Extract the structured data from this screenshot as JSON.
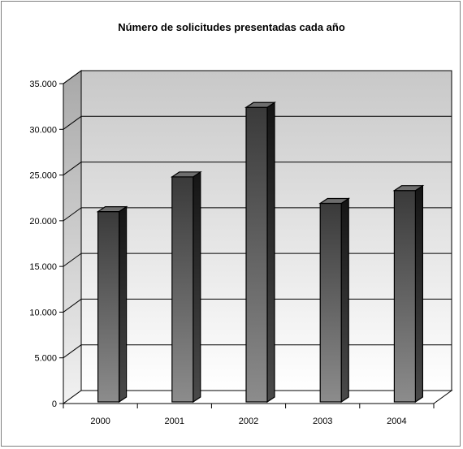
{
  "chart_data": {
    "type": "bar",
    "title": "Número de solicitudes presentadas cada año",
    "xlabel": "",
    "ylabel": "",
    "categories": [
      "2000",
      "2001",
      "2002",
      "2003",
      "2004"
    ],
    "values": [
      21000,
      24800,
      32400,
      21900,
      23300
    ],
    "ylim": [
      0,
      35000
    ],
    "y_ticks": [
      "0",
      "5.000",
      "10.000",
      "15.000",
      "20.000",
      "25.000",
      "30.000",
      "35.000"
    ],
    "grid": true,
    "legend": "none",
    "style": "3d-column"
  }
}
